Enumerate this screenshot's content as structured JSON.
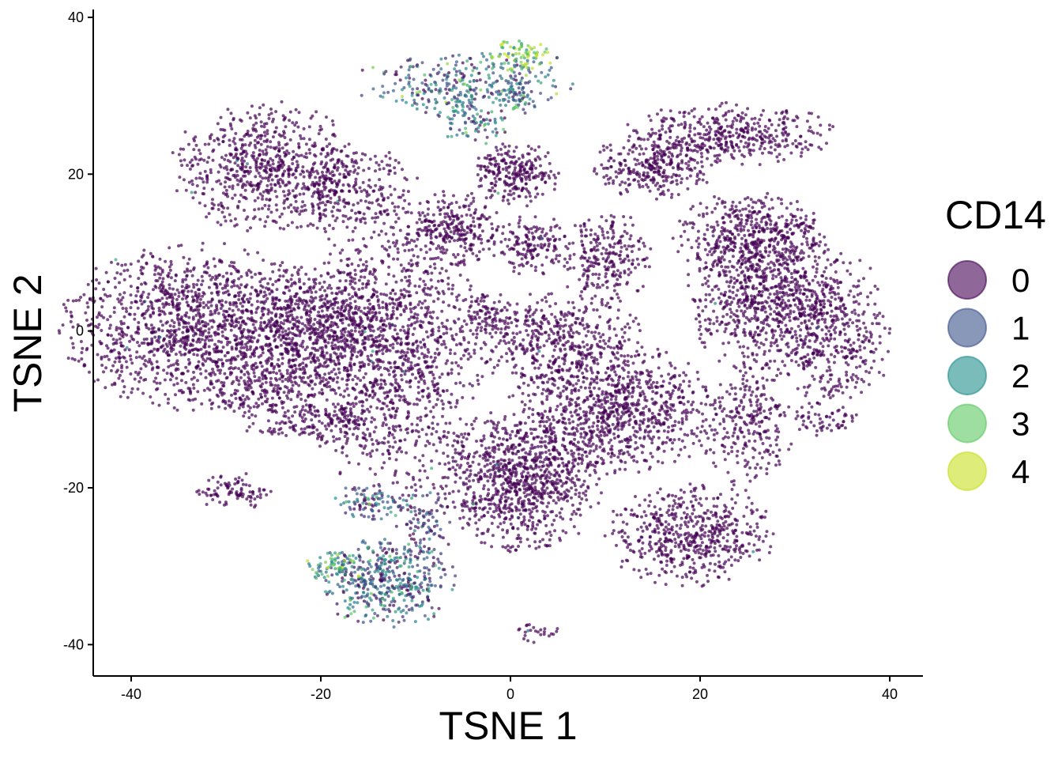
{
  "chart_data": {
    "type": "scatter",
    "title": "",
    "xlabel": "TSNE 1",
    "ylabel": "TSNE 2",
    "xlim": [
      -44,
      43.5
    ],
    "ylim": [
      -44,
      41
    ],
    "xticks": [
      -40,
      -20,
      0,
      20,
      40
    ],
    "yticks": [
      -40,
      -20,
      0,
      20,
      40
    ],
    "grid": false,
    "legend": {
      "title": "CD14",
      "placement": "right",
      "entries": [
        {
          "label": "0",
          "color": "#440154"
        },
        {
          "label": "1",
          "color": "#3B528B"
        },
        {
          "label": "2",
          "color": "#21908C"
        },
        {
          "label": "3",
          "color": "#5DC863"
        },
        {
          "label": "4",
          "color": "#C8E020"
        }
      ]
    },
    "point_alpha": 0.7,
    "clusters": [
      {
        "name": "left-large",
        "cx": -33,
        "cy": 0.5,
        "rx": 9,
        "ry": 6.5,
        "n": 1400,
        "expr": 0
      },
      {
        "name": "left-mid",
        "cx": -20,
        "cy": 0.5,
        "rx": 6,
        "ry": 5.5,
        "n": 700,
        "expr": 0
      },
      {
        "name": "left-lower-lobe",
        "cx": -25,
        "cy": -8,
        "rx": 4,
        "ry": 3.5,
        "n": 250,
        "expr": 0
      },
      {
        "name": "center-left",
        "cx": -12,
        "cy": -3,
        "rx": 5.5,
        "ry": 12,
        "n": 1100,
        "expr": 0
      },
      {
        "name": "center-left-tail",
        "cx": -18,
        "cy": -12,
        "rx": 4,
        "ry": 2,
        "n": 150,
        "expr": 0
      },
      {
        "name": "upper-left",
        "cx": -26,
        "cy": 21,
        "rx": 6,
        "ry": 5,
        "n": 650,
        "expr": 0
      },
      {
        "name": "upper-left-arm",
        "cx": -17,
        "cy": 18,
        "rx": 4.5,
        "ry": 4,
        "n": 300,
        "expr": 0
      },
      {
        "name": "top-band",
        "cx": -5,
        "cy": 31.5,
        "rx": 7,
        "ry": 2.5,
        "n": 280,
        "expr": 1.3
      },
      {
        "name": "top-band-right",
        "cx": 1.5,
        "cy": 35,
        "rx": 2.5,
        "ry": 1.5,
        "n": 90,
        "expr": 3.2
      },
      {
        "name": "top-hook",
        "cx": -4,
        "cy": 27,
        "rx": 2.5,
        "ry": 2,
        "n": 90,
        "expr": 1.3
      },
      {
        "name": "top-hook-tail",
        "cx": 0.5,
        "cy": 30,
        "rx": 2,
        "ry": 1.5,
        "n": 60,
        "expr": 1.5
      },
      {
        "name": "center-top",
        "cx": 0.5,
        "cy": 20,
        "rx": 2.8,
        "ry": 2.5,
        "n": 250,
        "expr": 0
      },
      {
        "name": "center-upper-left",
        "cx": -6,
        "cy": 13,
        "rx": 3,
        "ry": 3,
        "n": 260,
        "expr": 0
      },
      {
        "name": "center-upper-right",
        "cx": 2,
        "cy": 11,
        "rx": 2.5,
        "ry": 2.5,
        "n": 160,
        "expr": 0
      },
      {
        "name": "center-small",
        "cx": -2.5,
        "cy": 2,
        "rx": 2,
        "ry": 1.8,
        "n": 80,
        "expr": 0
      },
      {
        "name": "center-diagonal",
        "cx": 4.5,
        "cy": -1,
        "rx": 6,
        "ry": 3.5,
        "n": 450,
        "expr": 0
      },
      {
        "name": "center-right-small",
        "cx": 10,
        "cy": 9,
        "rx": 3,
        "ry": 4,
        "n": 250,
        "expr": 0
      },
      {
        "name": "lower-center",
        "cx": 1,
        "cy": -19,
        "rx": 5.5,
        "ry": 5.5,
        "n": 950,
        "expr": 0
      },
      {
        "name": "mid-lower",
        "cx": 11,
        "cy": -10,
        "rx": 7,
        "ry": 5,
        "n": 900,
        "expr": 0
      },
      {
        "name": "right-lower-blob",
        "cx": 19,
        "cy": -26,
        "rx": 5.5,
        "ry": 4,
        "n": 550,
        "expr": 0
      },
      {
        "name": "right-lower-strip",
        "cx": 25,
        "cy": -12,
        "rx": 3,
        "ry": 5,
        "n": 250,
        "expr": 0
      },
      {
        "name": "right-lower-arm",
        "cx": 33,
        "cy": -11,
        "rx": 2.5,
        "ry": 1.5,
        "n": 60,
        "expr": 0
      },
      {
        "name": "upper-right-top",
        "cx": 23,
        "cy": 25,
        "rx": 7,
        "ry": 2.5,
        "n": 420,
        "expr": 0
      },
      {
        "name": "upper-right-left",
        "cx": 15,
        "cy": 21,
        "rx": 4,
        "ry": 2.5,
        "n": 280,
        "expr": 0
      },
      {
        "name": "right-arc",
        "cx": 27,
        "cy": 5,
        "rx": 5,
        "ry": 7,
        "n": 850,
        "expr": 0
      },
      {
        "name": "right-arc-outer",
        "cx": 34,
        "cy": 0,
        "rx": 4,
        "ry": 6,
        "n": 400,
        "expr": 0
      },
      {
        "name": "right-arc-upper",
        "cx": 25,
        "cy": 12,
        "rx": 5,
        "ry": 3.5,
        "n": 350,
        "expr": 0
      },
      {
        "name": "left-bottom-strip",
        "cx": -29,
        "cy": -20.5,
        "rx": 2.5,
        "ry": 1.5,
        "n": 90,
        "expr": 0
      },
      {
        "name": "bottom-cluster",
        "cx": -13,
        "cy": -32,
        "rx": 4.5,
        "ry": 3.5,
        "n": 450,
        "expr": 1.2
      },
      {
        "name": "bottom-cluster-wing",
        "cx": -18.5,
        "cy": -30,
        "rx": 2,
        "ry": 1.3,
        "n": 70,
        "expr": 2.2
      },
      {
        "name": "bottom-top-arc",
        "cx": -15,
        "cy": -22,
        "rx": 2.5,
        "ry": 1.5,
        "n": 90,
        "expr": 1.1
      },
      {
        "name": "bottom-right-arm",
        "cx": -9,
        "cy": -25,
        "rx": 2,
        "ry": 3,
        "n": 90,
        "expr": 0.4
      },
      {
        "name": "bottom-tiny",
        "cx": 3,
        "cy": -38.5,
        "rx": 1.5,
        "ry": 0.8,
        "n": 25,
        "expr": 0
      }
    ]
  }
}
